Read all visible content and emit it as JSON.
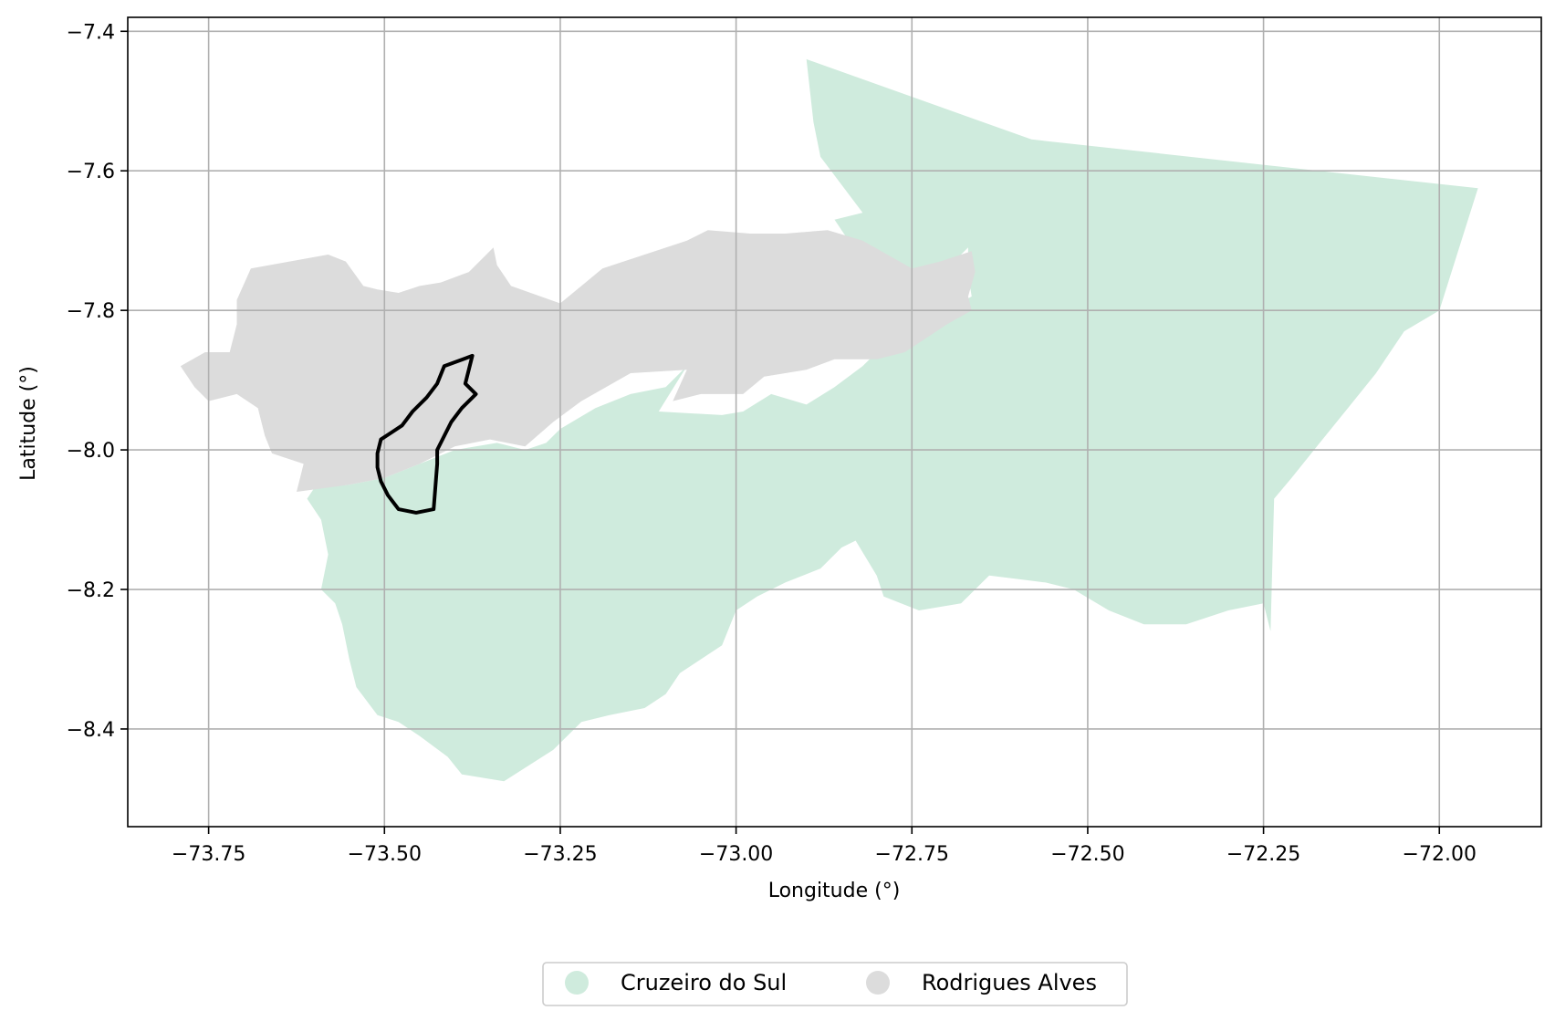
{
  "chart_data": {
    "type": "map",
    "xlabel": "Longitude (°)",
    "ylabel": "Latitude (°)",
    "xlim": [
      -73.865,
      -71.855
    ],
    "ylim": [
      -8.54,
      -7.38
    ],
    "grid": true,
    "legend_position": "bottom-center",
    "x_ticks": [
      {
        "value": -73.75,
        "label": "−73.75"
      },
      {
        "value": -73.5,
        "label": "−73.50"
      },
      {
        "value": -73.25,
        "label": "−73.25"
      },
      {
        "value": -73.0,
        "label": "−73.00"
      },
      {
        "value": -72.75,
        "label": "−72.75"
      },
      {
        "value": -72.5,
        "label": "−72.50"
      },
      {
        "value": -72.25,
        "label": "−72.25"
      },
      {
        "value": -72.0,
        "label": "−72.00"
      }
    ],
    "y_ticks": [
      {
        "value": -7.4,
        "label": "−7.4"
      },
      {
        "value": -7.6,
        "label": "−7.6"
      },
      {
        "value": -7.8,
        "label": "−7.8"
      },
      {
        "value": -8.0,
        "label": "−8.0"
      },
      {
        "value": -8.2,
        "label": "−8.2"
      },
      {
        "value": -8.4,
        "label": "−8.4"
      }
    ],
    "regions": [
      {
        "name": "Cruzeiro do Sul",
        "color": "#cfebdd",
        "polygon": [
          [
            -72.9,
            -7.44
          ],
          [
            -72.58,
            -7.555
          ],
          [
            -71.945,
            -7.625
          ],
          [
            -72.0,
            -7.8
          ],
          [
            -72.05,
            -7.83
          ],
          [
            -72.09,
            -7.89
          ],
          [
            -72.13,
            -7.94
          ],
          [
            -72.17,
            -7.99
          ],
          [
            -72.21,
            -8.04
          ],
          [
            -72.235,
            -8.07
          ],
          [
            -72.24,
            -8.26
          ],
          [
            -72.25,
            -8.22
          ],
          [
            -72.3,
            -8.23
          ],
          [
            -72.36,
            -8.25
          ],
          [
            -72.42,
            -8.25
          ],
          [
            -72.47,
            -8.23
          ],
          [
            -72.52,
            -8.2
          ],
          [
            -72.56,
            -8.19
          ],
          [
            -72.64,
            -8.18
          ],
          [
            -72.68,
            -8.22
          ],
          [
            -72.74,
            -8.23
          ],
          [
            -72.79,
            -8.21
          ],
          [
            -72.8,
            -8.18
          ],
          [
            -72.83,
            -8.13
          ],
          [
            -72.85,
            -8.14
          ],
          [
            -72.88,
            -8.17
          ],
          [
            -72.93,
            -8.19
          ],
          [
            -72.97,
            -8.21
          ],
          [
            -73.0,
            -8.23
          ],
          [
            -73.02,
            -8.28
          ],
          [
            -73.05,
            -8.3
          ],
          [
            -73.08,
            -8.32
          ],
          [
            -73.1,
            -8.35
          ],
          [
            -73.13,
            -8.37
          ],
          [
            -73.18,
            -8.38
          ],
          [
            -73.22,
            -8.39
          ],
          [
            -73.26,
            -8.43
          ],
          [
            -73.33,
            -8.475
          ],
          [
            -73.39,
            -8.465
          ],
          [
            -73.41,
            -8.44
          ],
          [
            -73.45,
            -8.41
          ],
          [
            -73.48,
            -8.39
          ],
          [
            -73.51,
            -8.38
          ],
          [
            -73.54,
            -8.34
          ],
          [
            -73.55,
            -8.3
          ],
          [
            -73.56,
            -8.25
          ],
          [
            -73.57,
            -8.22
          ],
          [
            -73.59,
            -8.2
          ],
          [
            -73.58,
            -8.15
          ],
          [
            -73.59,
            -8.1
          ],
          [
            -73.61,
            -8.07
          ],
          [
            -73.6,
            -8.055
          ],
          [
            -73.55,
            -8.05
          ],
          [
            -73.5,
            -8.04
          ],
          [
            -73.45,
            -8.02
          ],
          [
            -73.4,
            -8.0
          ],
          [
            -73.34,
            -7.99
          ],
          [
            -73.3,
            -8.0
          ],
          [
            -73.27,
            -7.99
          ],
          [
            -73.25,
            -7.97
          ],
          [
            -73.2,
            -7.94
          ],
          [
            -73.15,
            -7.92
          ],
          [
            -73.1,
            -7.91
          ],
          [
            -73.07,
            -7.88
          ],
          [
            -73.11,
            -7.945
          ],
          [
            -73.02,
            -7.95
          ],
          [
            -72.99,
            -7.945
          ],
          [
            -72.95,
            -7.92
          ],
          [
            -72.9,
            -7.935
          ],
          [
            -72.86,
            -7.91
          ],
          [
            -72.82,
            -7.88
          ],
          [
            -72.79,
            -7.85
          ],
          [
            -72.76,
            -7.83
          ],
          [
            -72.73,
            -7.82
          ],
          [
            -72.7,
            -7.8
          ],
          [
            -72.665,
            -7.78
          ],
          [
            -72.67,
            -7.75
          ],
          [
            -72.67,
            -7.71
          ],
          [
            -72.7,
            -7.74
          ],
          [
            -72.74,
            -7.755
          ],
          [
            -72.79,
            -7.73
          ],
          [
            -72.84,
            -7.7
          ],
          [
            -72.86,
            -7.67
          ],
          [
            -72.82,
            -7.66
          ],
          [
            -72.85,
            -7.62
          ],
          [
            -72.88,
            -7.58
          ],
          [
            -72.89,
            -7.53
          ],
          [
            -72.9,
            -7.44
          ]
        ]
      },
      {
        "name": "Rodrigues Alves",
        "color": "#dcdcdc",
        "polygon": [
          [
            -73.69,
            -7.74
          ],
          [
            -73.58,
            -7.72
          ],
          [
            -73.555,
            -7.73
          ],
          [
            -73.53,
            -7.765
          ],
          [
            -73.51,
            -7.77
          ],
          [
            -73.48,
            -7.775
          ],
          [
            -73.45,
            -7.765
          ],
          [
            -73.42,
            -7.76
          ],
          [
            -73.38,
            -7.745
          ],
          [
            -73.36,
            -7.725
          ],
          [
            -73.345,
            -7.71
          ],
          [
            -73.34,
            -7.735
          ],
          [
            -73.32,
            -7.765
          ],
          [
            -73.25,
            -7.79
          ],
          [
            -73.19,
            -7.74
          ],
          [
            -73.07,
            -7.7
          ],
          [
            -73.04,
            -7.685
          ],
          [
            -72.98,
            -7.69
          ],
          [
            -72.93,
            -7.69
          ],
          [
            -72.87,
            -7.685
          ],
          [
            -72.82,
            -7.7
          ],
          [
            -72.75,
            -7.74
          ],
          [
            -72.71,
            -7.73
          ],
          [
            -72.665,
            -7.715
          ],
          [
            -72.66,
            -7.745
          ],
          [
            -72.67,
            -7.78
          ],
          [
            -72.665,
            -7.8
          ],
          [
            -72.7,
            -7.82
          ],
          [
            -72.76,
            -7.86
          ],
          [
            -72.8,
            -7.87
          ],
          [
            -72.86,
            -7.87
          ],
          [
            -72.9,
            -7.885
          ],
          [
            -72.96,
            -7.895
          ],
          [
            -72.99,
            -7.92
          ],
          [
            -73.05,
            -7.92
          ],
          [
            -73.09,
            -7.93
          ],
          [
            -73.07,
            -7.885
          ],
          [
            -73.15,
            -7.89
          ],
          [
            -73.22,
            -7.93
          ],
          [
            -73.26,
            -7.96
          ],
          [
            -73.3,
            -7.995
          ],
          [
            -73.35,
            -7.985
          ],
          [
            -73.4,
            -7.995
          ],
          [
            -73.45,
            -8.02
          ],
          [
            -73.5,
            -8.04
          ],
          [
            -73.55,
            -8.05
          ],
          [
            -73.625,
            -8.06
          ],
          [
            -73.615,
            -8.02
          ],
          [
            -73.66,
            -8.005
          ],
          [
            -73.67,
            -7.98
          ],
          [
            -73.68,
            -7.94
          ],
          [
            -73.71,
            -7.92
          ],
          [
            -73.75,
            -7.93
          ],
          [
            -73.77,
            -7.91
          ],
          [
            -73.79,
            -7.88
          ],
          [
            -73.755,
            -7.86
          ],
          [
            -73.72,
            -7.86
          ],
          [
            -73.71,
            -7.82
          ],
          [
            -73.71,
            -7.785
          ],
          [
            -73.69,
            -7.74
          ]
        ]
      }
    ],
    "highlight_outline": {
      "color": "#000000",
      "polygon": [
        [
          -73.375,
          -7.865
        ],
        [
          -73.415,
          -7.88
        ],
        [
          -73.425,
          -7.905
        ],
        [
          -73.44,
          -7.925
        ],
        [
          -73.46,
          -7.945
        ],
        [
          -73.475,
          -7.965
        ],
        [
          -73.49,
          -7.975
        ],
        [
          -73.505,
          -7.985
        ],
        [
          -73.51,
          -8.005
        ],
        [
          -73.51,
          -8.025
        ],
        [
          -73.505,
          -8.045
        ],
        [
          -73.495,
          -8.065
        ],
        [
          -73.48,
          -8.085
        ],
        [
          -73.455,
          -8.09
        ],
        [
          -73.43,
          -8.085
        ],
        [
          -73.425,
          -8.02
        ],
        [
          -73.425,
          -8.0
        ],
        [
          -73.405,
          -7.96
        ],
        [
          -73.39,
          -7.94
        ],
        [
          -73.37,
          -7.92
        ],
        [
          -73.385,
          -7.905
        ],
        [
          -73.375,
          -7.865
        ]
      ]
    }
  },
  "legend": {
    "items": [
      {
        "label": "Cruzeiro do Sul",
        "color": "#cfebdd"
      },
      {
        "label": "Rodrigues Alves",
        "color": "#dcdcdc"
      }
    ]
  }
}
